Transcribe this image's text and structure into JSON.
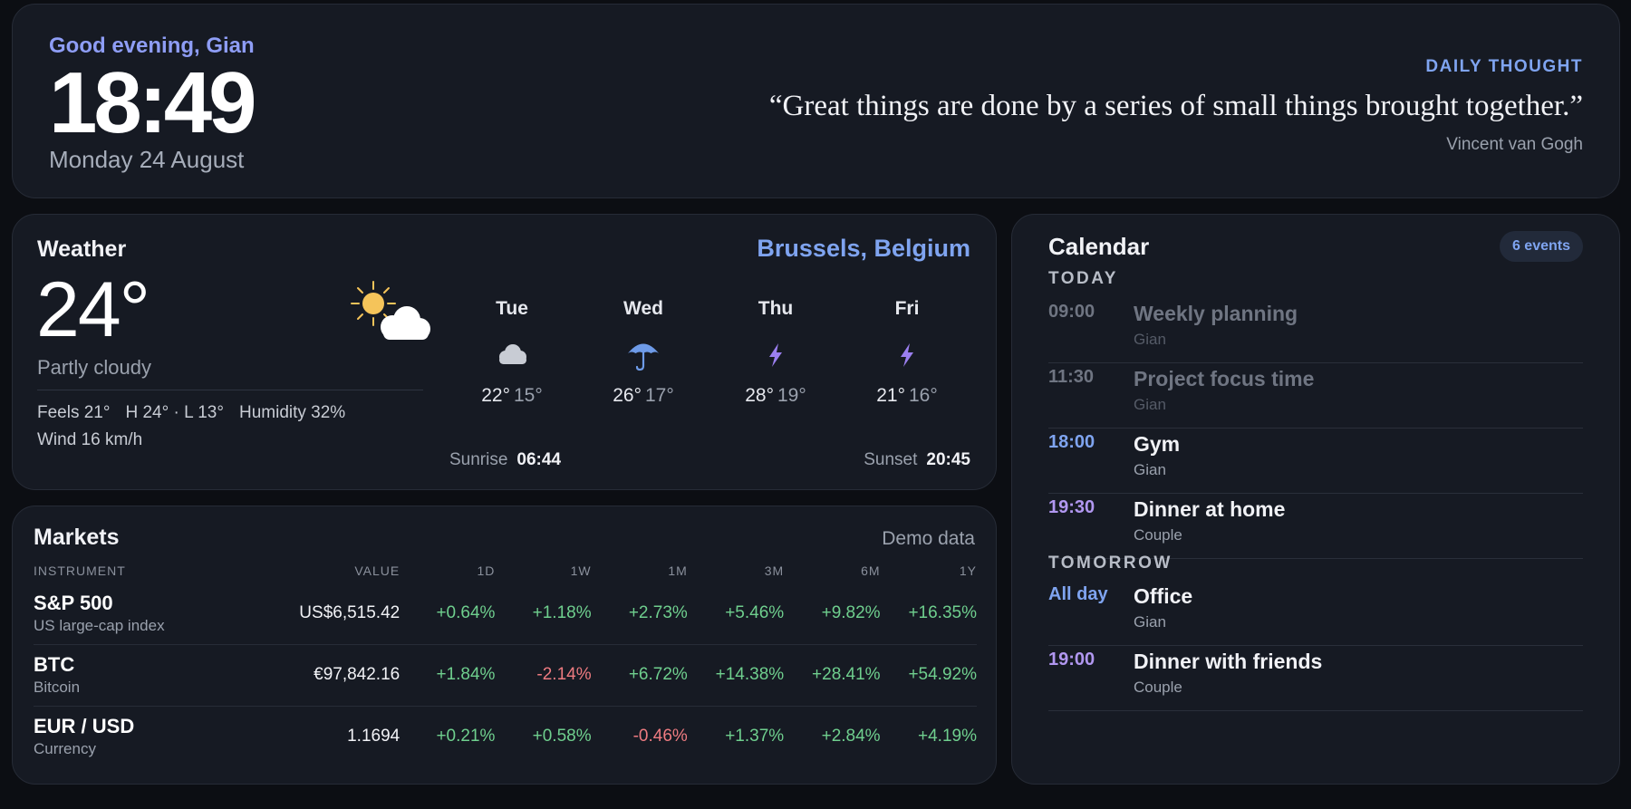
{
  "header": {
    "greeting": "Good evening, Gian",
    "time": "18:49",
    "date": "Monday 24 August",
    "thought_label": "DAILY THOUGHT",
    "quote": "“Great things are done by a series of small things brought together.”",
    "author": "Vincent van Gogh"
  },
  "weather": {
    "title": "Weather",
    "location": "Brussels, Belgium",
    "temperature": "24°",
    "condition": "Partly cloudy",
    "icon": "partly-cloudy-icon",
    "feels": "Feels 21°",
    "high_low": "H 24° · L 13°",
    "humidity": "Humidity 32%",
    "wind": "Wind 16 km/h",
    "forecast": [
      {
        "day": "Tue",
        "icon": "cloud-icon",
        "high": "22°",
        "low": "15°"
      },
      {
        "day": "Wed",
        "icon": "umbrella-icon",
        "high": "26°",
        "low": "17°"
      },
      {
        "day": "Thu",
        "icon": "lightning-icon",
        "high": "28°",
        "low": "19°"
      },
      {
        "day": "Fri",
        "icon": "lightning-icon",
        "high": "21°",
        "low": "16°"
      }
    ],
    "sunrise_label": "Sunrise",
    "sunrise": "06:44",
    "sunset_label": "Sunset",
    "sunset": "20:45"
  },
  "markets": {
    "title": "Markets",
    "note": "Demo data",
    "columns": [
      "INSTRUMENT",
      "VALUE",
      "1D",
      "1W",
      "1M",
      "3M",
      "6M",
      "1Y"
    ],
    "rows": [
      {
        "name": "S&P 500",
        "sub": "US large-cap index",
        "value": "US$6,515.42",
        "changes": [
          "+0.64%",
          "+1.18%",
          "+2.73%",
          "+5.46%",
          "+9.82%",
          "+16.35%"
        ]
      },
      {
        "name": "BTC",
        "sub": "Bitcoin",
        "value": "€97,842.16",
        "changes": [
          "+1.84%",
          "-2.14%",
          "+6.72%",
          "+14.38%",
          "+28.41%",
          "+54.92%"
        ]
      },
      {
        "name": "EUR / USD",
        "sub": "Currency",
        "value": "1.1694",
        "changes": [
          "+0.21%",
          "+0.58%",
          "-0.46%",
          "+1.37%",
          "+2.84%",
          "+4.19%"
        ]
      }
    ],
    "positive_color": "#6fcf8e",
    "negative_color": "#ee7b80"
  },
  "calendar": {
    "title": "Calendar",
    "badge": "6 events",
    "today_label": "TODAY",
    "tomorrow_label": "TOMORROW",
    "today": [
      {
        "time": "09:00",
        "name": "Weekly planning",
        "who": "Gian",
        "state": "past"
      },
      {
        "time": "11:30",
        "name": "Project focus time",
        "who": "Gian",
        "state": "past"
      },
      {
        "time": "18:00",
        "name": "Gym",
        "who": "Gian",
        "state": "blue"
      },
      {
        "time": "19:30",
        "name": "Dinner at home",
        "who": "Couple",
        "state": "purple"
      }
    ],
    "tomorrow": [
      {
        "time": "All day",
        "name": "Office",
        "who": "Gian",
        "state": "blue"
      },
      {
        "time": "19:00",
        "name": "Dinner with friends",
        "who": "Couple",
        "state": "purple"
      }
    ]
  }
}
